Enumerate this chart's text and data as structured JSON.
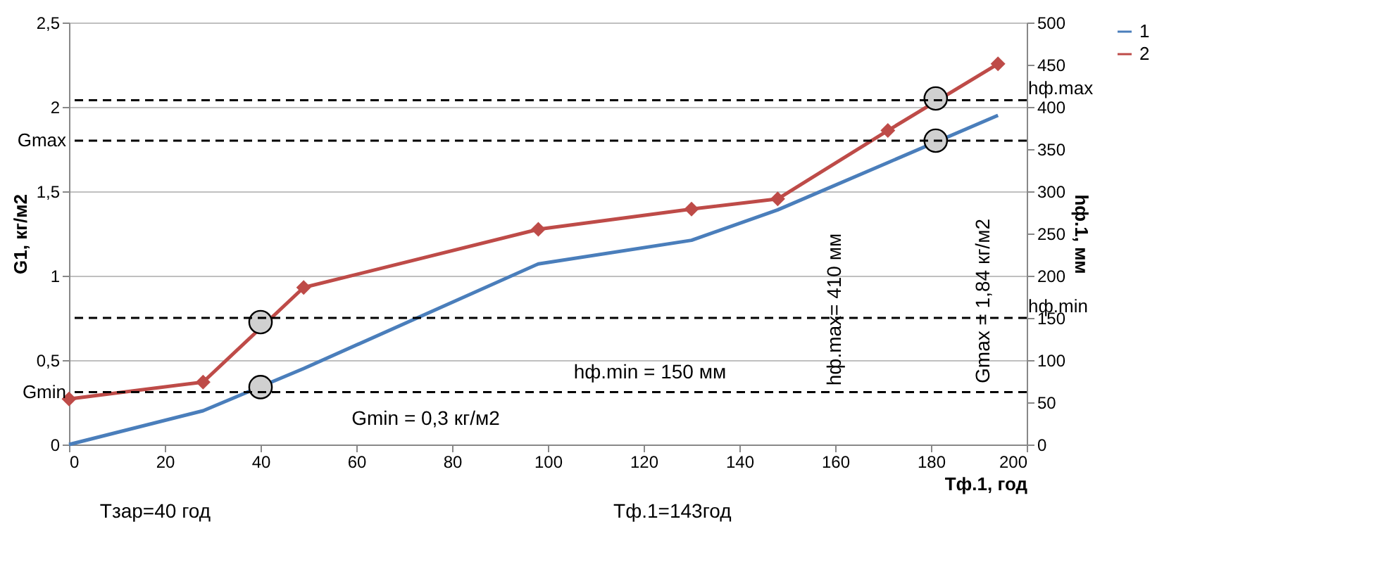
{
  "chart_data": {
    "type": "line",
    "xlabel": "Tф.1, год",
    "ylabel": "G1, кг/м2",
    "y2label": "hф.1, мм",
    "xlim": [
      0,
      200
    ],
    "xticks": [
      0,
      20,
      40,
      60,
      80,
      100,
      120,
      140,
      160,
      180,
      200
    ],
    "ylim": [
      0,
      2.5
    ],
    "yticks": [
      0,
      {
        "value": 0.5,
        "label": "0,5"
      },
      1,
      {
        "value": 1.5,
        "label": "1,5"
      },
      2,
      {
        "value": 2.5,
        "label": "2,5"
      }
    ],
    "y2lim": [
      0,
      500
    ],
    "y2ticks": [
      0,
      50,
      100,
      150,
      200,
      250,
      300,
      350,
      400,
      450,
      500
    ],
    "grid": "y",
    "legend": "right",
    "line_style": "solid",
    "series": [
      {
        "name": "1",
        "color": "#4a7ebb",
        "marker": "none",
        "x": [
          0,
          28,
          49,
          98,
          130,
          148,
          171,
          194
        ],
        "values": [
          0,
          0.2,
          0.45,
          1.07,
          1.21,
          1.39,
          1.67,
          1.95
        ]
      },
      {
        "name": "2",
        "axis": "y2",
        "color": "#be4b48",
        "marker": "diamond",
        "x": [
          0,
          28,
          49,
          98,
          130,
          148,
          171,
          194
        ],
        "values": [
          54,
          74,
          186,
          255,
          279,
          291,
          372,
          451
        ]
      },
      {
        "type": "scatter",
        "color": "#d0d0d0",
        "marker": "circle",
        "x": [
          40,
          181
        ],
        "values": [
          0.34,
          1.8
        ]
      },
      {
        "type": "scatter",
        "axis": "y2",
        "color": "#d0d0d0",
        "marker": "circle",
        "x": [
          40,
          181
        ],
        "values": [
          145,
          410
        ]
      }
    ],
    "ref_lines": [
      {
        "axis": "y",
        "value": 1.8,
        "label": "Gmax",
        "line_style": "dashed",
        "color": "#000000"
      },
      {
        "axis": "y",
        "value": 0.31,
        "label": "Gmin",
        "line_style": "dashed",
        "color": "#000000"
      },
      {
        "axis": "y2",
        "value": 408,
        "label": "hф.max",
        "line_style": "dashed",
        "color": "#000000"
      },
      {
        "axis": "y2",
        "value": 150,
        "label": "hф.min",
        "line_style": "dashed",
        "color": "#000000"
      }
    ],
    "annotations": [
      "Gmin = 0,3 кг/м2",
      "hф.min = 150 мм",
      "hф.max= 410 мм",
      "Gmax = 1,84 кг/м2",
      "Tзар=40 год",
      "Tф.1=143год"
    ]
  }
}
